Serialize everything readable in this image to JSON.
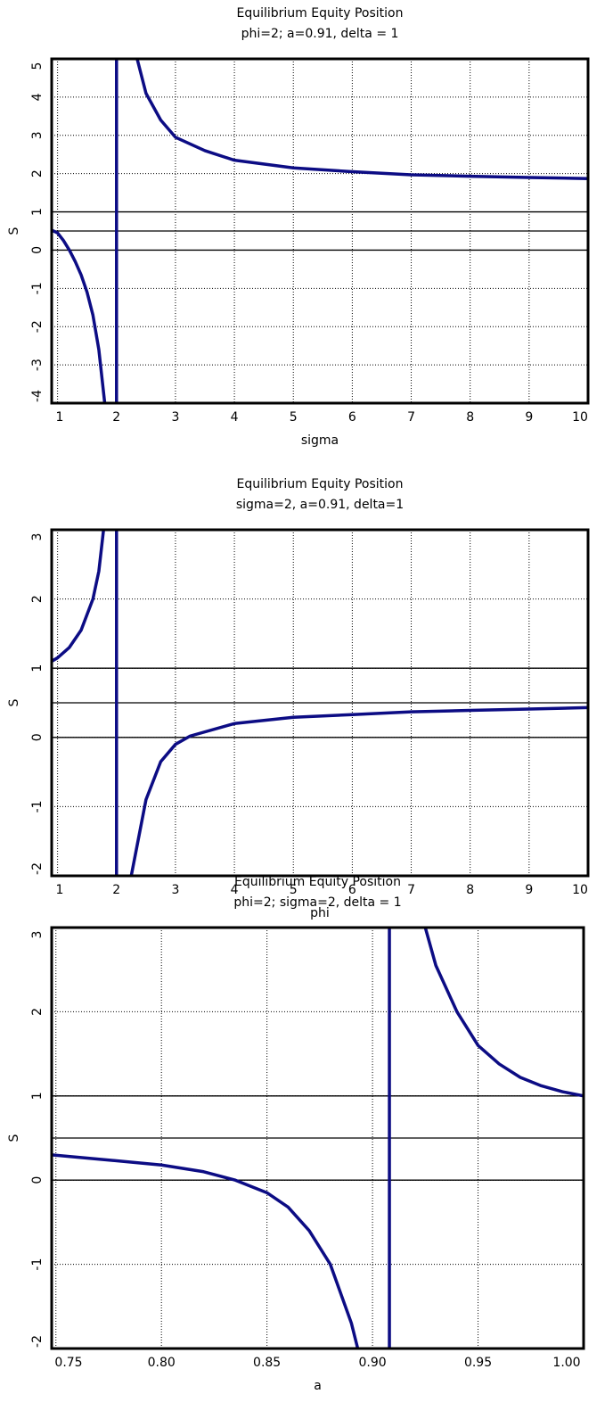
{
  "chart_data": [
    {
      "type": "line",
      "title": "Equilibrium Equity Position",
      "subtitle": "phi=2; a=0.91, delta = 1",
      "x_label": "sigma",
      "y_label": "S",
      "x": [
        0.9,
        1.0,
        1.1,
        1.2,
        1.3,
        1.4,
        1.5,
        1.6,
        1.7,
        1.8,
        2.0,
        2.35,
        2.5,
        2.75,
        3,
        3.5,
        4,
        5,
        6,
        7,
        8,
        9,
        10
      ],
      "series": [
        {
          "name": "S",
          "color": "#0c0c84",
          "values": [
            0.52,
            0.45,
            0.25,
            0.0,
            -0.3,
            -0.65,
            -1.1,
            -1.7,
            -2.6,
            -4,
            null,
            5,
            4.1,
            3.4,
            2.95,
            2.6,
            2.35,
            2.15,
            2.05,
            1.97,
            1.93,
            1.9,
            1.87
          ]
        }
      ],
      "asymptote": 2,
      "reference_lines": [
        0,
        0.5,
        1
      ],
      "xlim": [
        0.9,
        10
      ],
      "ylim": [
        -4,
        5
      ],
      "xticks": [
        1,
        2,
        3,
        4,
        5,
        6,
        7,
        8,
        9,
        10
      ],
      "yticks": [
        -4,
        -3,
        -2,
        -1,
        0,
        1,
        2,
        3,
        4,
        5
      ],
      "grid": true
    },
    {
      "type": "line",
      "title": "Equilibrium Equity Position",
      "subtitle": "sigma=2, a=0.91, delta=1",
      "x_label": "phi",
      "y_label": "S",
      "x": [
        0.9,
        1.0,
        1.2,
        1.4,
        1.6,
        1.7,
        1.78,
        2.0,
        2.25,
        2.5,
        2.75,
        3,
        3.25,
        4,
        5,
        6,
        7,
        8,
        9,
        10
      ],
      "series": [
        {
          "name": "S",
          "color": "#0c0c84",
          "values": [
            1.1,
            1.15,
            1.3,
            1.55,
            2.0,
            2.4,
            3,
            null,
            -2,
            -0.9,
            -0.35,
            -0.1,
            0.02,
            0.2,
            0.29,
            0.33,
            0.37,
            0.39,
            0.41,
            0.43
          ]
        }
      ],
      "asymptote": 2,
      "reference_lines": [
        0,
        0.5,
        1
      ],
      "xlim": [
        0.9,
        10
      ],
      "ylim": [
        -2,
        3
      ],
      "xticks": [
        1,
        2,
        3,
        4,
        5,
        6,
        7,
        8,
        9,
        10
      ],
      "yticks": [
        -2,
        -1,
        0,
        1,
        2,
        3
      ],
      "grid": true
    },
    {
      "type": "line",
      "title": "Equilibrium Equity Position",
      "subtitle": "phi=2; sigma=2, delta = 1",
      "x_label": "a",
      "y_label": "S",
      "x": [
        0.748,
        0.77,
        0.8,
        0.82,
        0.835,
        0.85,
        0.86,
        0.87,
        0.88,
        0.89,
        0.893,
        0.908,
        0.925,
        0.93,
        0.94,
        0.95,
        0.96,
        0.97,
        0.98,
        0.99,
        1.0
      ],
      "series": [
        {
          "name": "S",
          "color": "#0c0c84",
          "values": [
            0.3,
            0.25,
            0.18,
            0.1,
            0.0,
            -0.15,
            -0.32,
            -0.6,
            -1.0,
            -1.7,
            -2,
            null,
            3,
            2.55,
            2.0,
            1.6,
            1.38,
            1.22,
            1.12,
            1.05,
            1.0
          ]
        }
      ],
      "asymptote": 0.908,
      "reference_lines": [
        0,
        0.5,
        1
      ],
      "xlim": [
        0.748,
        1.0
      ],
      "ylim": [
        -2,
        3
      ],
      "xticks": [
        {
          "value": 0.75,
          "label": "0.75"
        },
        {
          "value": 0.8,
          "label": "0.80"
        },
        0.85,
        {
          "value": 0.9,
          "label": "0.90"
        },
        0.95,
        {
          "value": 1.0,
          "label": "1.00"
        }
      ],
      "yticks": [
        -2,
        -1,
        0,
        1,
        2,
        3
      ],
      "grid": true
    }
  ]
}
